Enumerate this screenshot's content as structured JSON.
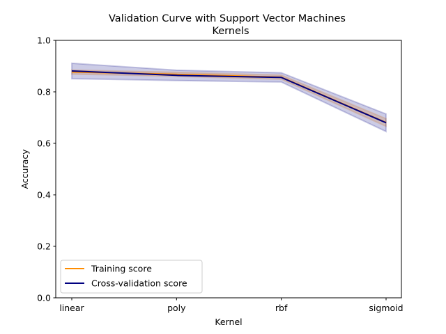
{
  "chart_data": {
    "type": "line",
    "title": "Validation Curve with Support Vector Machines",
    "subtitle": "Kernels",
    "xlabel": "Kernel",
    "ylabel": "Accuracy",
    "categories": [
      "linear",
      "poly",
      "rbf",
      "sigmoid"
    ],
    "ylim": [
      0.0,
      1.0
    ],
    "yticks": [
      "0.0",
      "0.2",
      "0.4",
      "0.6",
      "0.8",
      "1.0"
    ],
    "grid": false,
    "legend_position": "lower-left",
    "series": [
      {
        "name": "Training score",
        "color": "#ff8c00",
        "values": [
          0.877,
          0.868,
          0.857,
          0.681
        ],
        "std": [
          0.008,
          0.008,
          0.008,
          0.015
        ]
      },
      {
        "name": "Cross-validation score",
        "color": "#000080",
        "values": [
          0.881,
          0.864,
          0.856,
          0.68
        ],
        "std": [
          0.03,
          0.02,
          0.018,
          0.034
        ]
      }
    ]
  }
}
